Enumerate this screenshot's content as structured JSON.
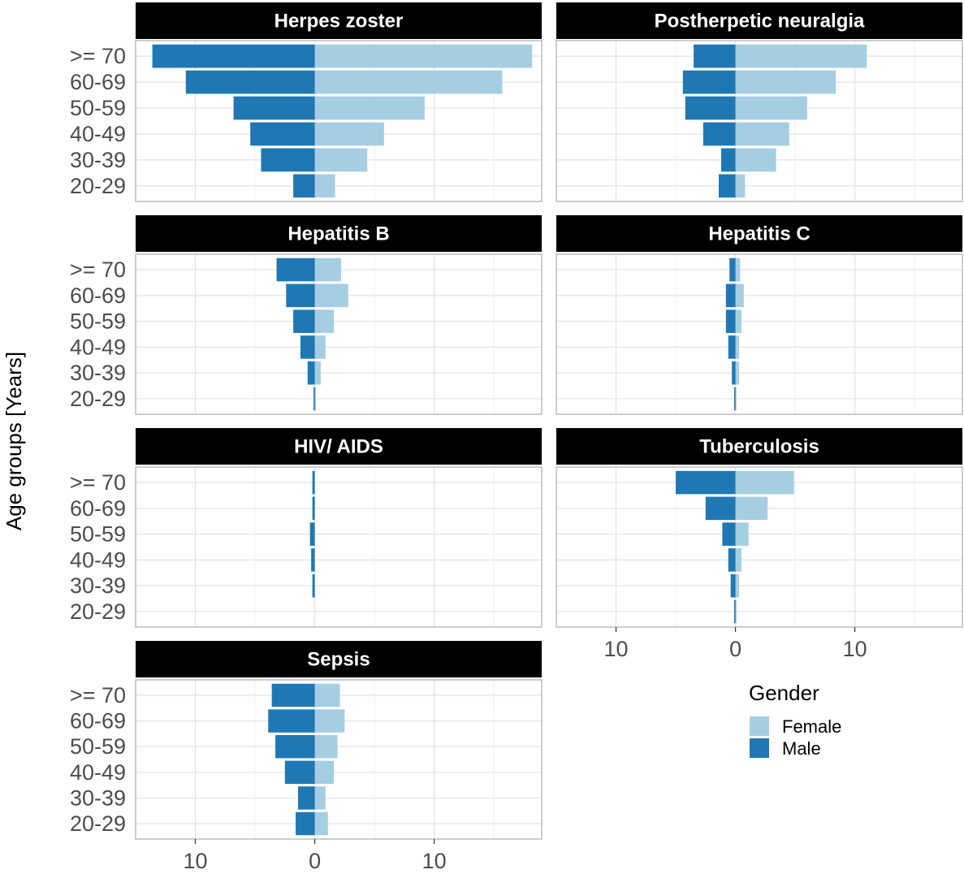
{
  "chart_data": {
    "type": "bar",
    "orientation": "horizontal",
    "layout": "faceted population pyramid",
    "categories": [
      "20-29",
      "30-39",
      "40-49",
      "50-59",
      "60-69",
      ">= 70"
    ],
    "ylabel": "Age groups [Years]",
    "xlabel": "",
    "x_tick_labels": [
      "10",
      "0",
      "10"
    ],
    "x_tick_values": [
      -10,
      0,
      10
    ],
    "xlim": [
      -15,
      19
    ],
    "grid": true,
    "legend": {
      "title": "Gender",
      "placement": "bottom-right",
      "entries": [
        {
          "name": "Female",
          "color": "#a6cee3"
        },
        {
          "name": "Male",
          "color": "#1f78b4"
        }
      ]
    },
    "colors": {
      "Female": "#a6cee3",
      "Male": "#1f78b4"
    },
    "panels": [
      {
        "title": "Herpes zoster",
        "series": [
          {
            "name": "Female",
            "values": [
              1.7,
              4.4,
              5.8,
              9.2,
              15.7,
              18.2
            ]
          },
          {
            "name": "Male",
            "values": [
              1.8,
              4.5,
              5.4,
              6.8,
              10.8,
              13.6
            ]
          }
        ]
      },
      {
        "title": "Postherpetic neuralgia",
        "series": [
          {
            "name": "Female",
            "values": [
              0.8,
              3.4,
              4.5,
              6.0,
              8.4,
              11.0
            ]
          },
          {
            "name": "Male",
            "values": [
              1.4,
              1.2,
              2.7,
              4.2,
              4.4,
              3.5
            ]
          }
        ]
      },
      {
        "title": "Hepatitis B",
        "series": [
          {
            "name": "Female",
            "values": [
              0.1,
              0.5,
              0.9,
              1.6,
              2.8,
              2.2
            ]
          },
          {
            "name": "Male",
            "values": [
              0.1,
              0.6,
              1.2,
              1.8,
              2.4,
              3.2
            ]
          }
        ]
      },
      {
        "title": "Hepatitis C",
        "series": [
          {
            "name": "Female",
            "values": [
              0.05,
              0.3,
              0.3,
              0.5,
              0.7,
              0.4
            ]
          },
          {
            "name": "Male",
            "values": [
              0.05,
              0.3,
              0.6,
              0.8,
              0.8,
              0.5
            ]
          }
        ]
      },
      {
        "title": "HIV/ AIDS",
        "series": [
          {
            "name": "Female",
            "values": [
              0,
              0,
              0,
              0,
              0,
              0
            ]
          },
          {
            "name": "Male",
            "values": [
              0,
              0.2,
              0.3,
              0.4,
              0.2,
              0.2
            ]
          }
        ]
      },
      {
        "title": "Tuberculosis",
        "series": [
          {
            "name": "Female",
            "values": [
              0.1,
              0.3,
              0.5,
              1.1,
              2.7,
              4.9
            ]
          },
          {
            "name": "Male",
            "values": [
              0.1,
              0.4,
              0.6,
              1.1,
              2.5,
              5.0
            ]
          }
        ]
      },
      {
        "title": "Sepsis",
        "series": [
          {
            "name": "Female",
            "values": [
              1.1,
              0.9,
              1.6,
              1.9,
              2.5,
              2.1
            ]
          },
          {
            "name": "Male",
            "values": [
              1.6,
              1.4,
              2.5,
              3.3,
              3.9,
              3.6
            ]
          }
        ]
      }
    ]
  }
}
